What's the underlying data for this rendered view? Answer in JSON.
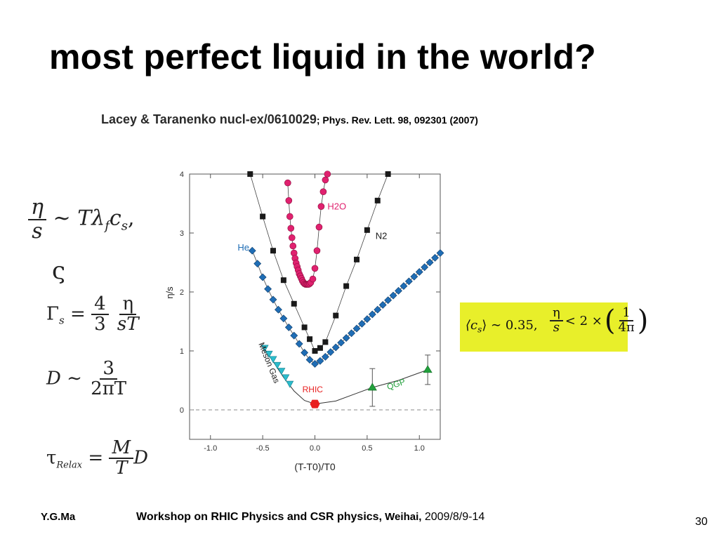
{
  "slide": {
    "title": "most perfect liquid in the world?",
    "ref_main": "Lacey & Taranenko nucl-ex/0610029",
    "ref_pub": "; Phys. Rev. Lett. 98, 092301 (2007)",
    "footer_left": "Y.G.Ma",
    "footer_center_bold": "Workshop on RHIC Physics and CSR physics,",
    "footer_center_place": " Weihai,",
    "footer_center_date": " 2009/8/9-14",
    "page_number": "30"
  },
  "equations": {
    "eq1": {
      "num": "η",
      "den": "s",
      "rhs": "∼ Tλ",
      "sub": "f",
      "rhs2": "c",
      "sub2": "s",
      "tail": ","
    },
    "eq2": {
      "symbol": "ς"
    },
    "eq3": {
      "lhs": "Γ",
      "sub": "s",
      "eq": "=",
      "n1": "4",
      "d1": "3",
      "n2": "η",
      "d2": "sT"
    },
    "eq4": {
      "lhs": "D ∼",
      "num": "3",
      "den": "2πT"
    },
    "eq5": {
      "lhs": "τ",
      "sub": "Relax",
      "eq": "=",
      "num": "M",
      "den": "T",
      "tail": "D"
    },
    "box": {
      "lhs": "⟨c",
      "sub": "s",
      "rhs": "⟩ ∼ 0.35,",
      "num": "η",
      "den": "s",
      "mid": "< 2 ×",
      "n2": "1",
      "d2": "4π"
    }
  },
  "chart_data": {
    "type": "scatter",
    "xlabel": "(T-T0)/T0",
    "ylabel": "η/s",
    "xlim": [
      -1.2,
      1.2
    ],
    "ylim": [
      -0.5,
      4.0
    ],
    "xticks": [
      "-1.0",
      "-0.5",
      "0.0",
      "0.5",
      "1.0"
    ],
    "yticks": [
      "0",
      "1",
      "2",
      "3",
      "4"
    ],
    "reference_line": 0,
    "colors": {
      "H2O": "#e0216f",
      "N2": "#1a1a1a",
      "He": "#1f6db5",
      "Meson Gas": "#2bbccc",
      "RHIC": "#e82020",
      "QGP": "#22a03c"
    },
    "series": [
      {
        "name": "H2O",
        "x": [
          -0.26,
          -0.25,
          -0.24,
          -0.23,
          -0.22,
          -0.21,
          -0.2,
          -0.19,
          -0.18,
          -0.17,
          -0.16,
          -0.15,
          -0.14,
          -0.13,
          -0.12,
          -0.11,
          -0.1,
          -0.09,
          -0.08,
          -0.07,
          -0.06,
          -0.05,
          -0.04,
          -0.02,
          0.0,
          0.02,
          0.04,
          0.06,
          0.08,
          0.1,
          0.12
        ],
        "y": [
          3.85,
          3.55,
          3.28,
          3.08,
          2.92,
          2.78,
          2.66,
          2.57,
          2.49,
          2.43,
          2.37,
          2.31,
          2.27,
          2.23,
          2.19,
          2.16,
          2.14,
          2.13,
          2.13,
          2.13,
          2.13,
          2.14,
          2.16,
          2.22,
          2.4,
          2.7,
          3.1,
          3.45,
          3.7,
          3.9,
          4.0
        ]
      },
      {
        "name": "N2",
        "x": [
          -0.62,
          -0.5,
          -0.4,
          -0.3,
          -0.2,
          -0.1,
          -0.05,
          0.0,
          0.05,
          0.1,
          0.2,
          0.3,
          0.4,
          0.5,
          0.6,
          0.7
        ],
        "y": [
          4.0,
          3.28,
          2.7,
          2.2,
          1.8,
          1.4,
          1.2,
          1.0,
          1.05,
          1.15,
          1.6,
          2.1,
          2.55,
          3.05,
          3.55,
          4.0
        ]
      },
      {
        "name": "He",
        "x": [
          -0.6,
          -0.55,
          -0.5,
          -0.45,
          -0.4,
          -0.35,
          -0.3,
          -0.25,
          -0.2,
          -0.15,
          -0.1,
          -0.05,
          0.0,
          0.05,
          0.1,
          0.15,
          0.2,
          0.25,
          0.3,
          0.35,
          0.4,
          0.45,
          0.5,
          0.55,
          0.6,
          0.65,
          0.7,
          0.75,
          0.8,
          0.85,
          0.9,
          0.95,
          1.0,
          1.05,
          1.1,
          1.15,
          1.2
        ],
        "y": [
          2.7,
          2.48,
          2.25,
          2.05,
          1.87,
          1.7,
          1.55,
          1.4,
          1.26,
          1.12,
          0.97,
          0.85,
          0.78,
          0.83,
          0.9,
          0.98,
          1.06,
          1.14,
          1.22,
          1.3,
          1.38,
          1.46,
          1.54,
          1.62,
          1.7,
          1.78,
          1.86,
          1.94,
          2.02,
          2.1,
          2.18,
          2.26,
          2.34,
          2.42,
          2.5,
          2.58,
          2.66
        ]
      },
      {
        "name": "Meson Gas",
        "x": [
          -0.48,
          -0.44,
          -0.4,
          -0.36,
          -0.32,
          -0.28,
          -0.24
        ],
        "y": [
          1.05,
          0.95,
          0.86,
          0.76,
          0.66,
          0.55,
          0.44
        ]
      },
      {
        "name": "RHIC",
        "x": [
          0.0
        ],
        "y": [
          0.1
        ]
      },
      {
        "name": "QGP",
        "x": [
          0.55,
          1.08
        ],
        "y": [
          0.38,
          0.68
        ],
        "yerr": [
          0.32,
          0.25
        ]
      }
    ],
    "annotations": [
      "H2O",
      "N2",
      "He",
      "Meson Gas",
      "RHIC",
      "QGP"
    ]
  }
}
